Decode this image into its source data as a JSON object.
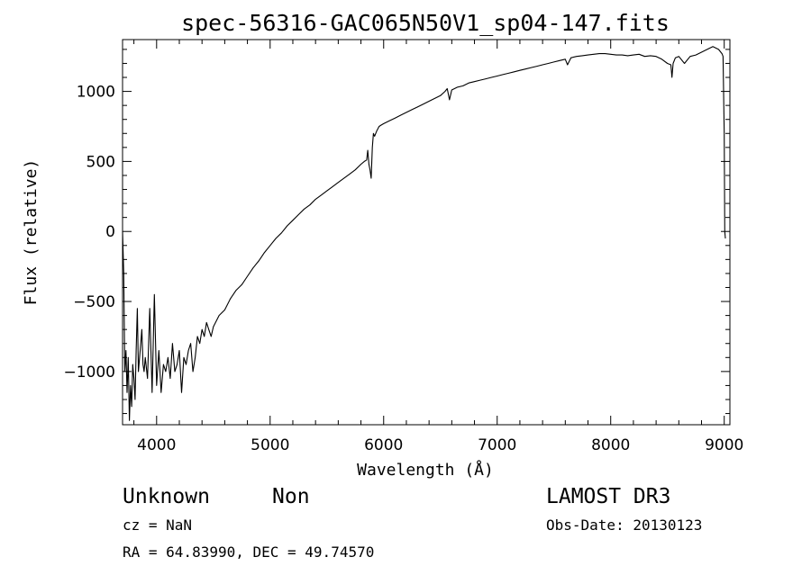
{
  "chart_data": {
    "type": "line",
    "title": "spec-56316-GAC065N50V1_sp04-147.fits",
    "xlabel": "Wavelength (Å)",
    "ylabel": "Flux (relative)",
    "xlim": [
      3700,
      9050
    ],
    "ylim": [
      -1380,
      1370
    ],
    "x_ticks": [
      4000,
      5000,
      6000,
      7000,
      8000,
      9000
    ],
    "y_ticks": [
      -1000,
      -500,
      0,
      500,
      1000
    ],
    "grid": false,
    "series": [
      {
        "x": [
          3700,
          3710,
          3720,
          3730,
          3740,
          3750,
          3760,
          3770,
          3780,
          3790,
          3800,
          3810,
          3820,
          3830,
          3840,
          3850,
          3860,
          3870,
          3880,
          3890,
          3900,
          3920,
          3940,
          3960,
          3980,
          4000,
          4020,
          4040,
          4060,
          4080,
          4100,
          4120,
          4140,
          4160,
          4180,
          4200,
          4220,
          4240,
          4260,
          4280,
          4300,
          4320,
          4340,
          4360,
          4380,
          4400,
          4420,
          4440,
          4460,
          4480,
          4500,
          4550,
          4600,
          4650,
          4700,
          4750,
          4800,
          4850,
          4900,
          4950,
          5000,
          5050,
          5100,
          5150,
          5200,
          5250,
          5300,
          5350,
          5400,
          5450,
          5500,
          5550,
          5600,
          5650,
          5700,
          5750,
          5800,
          5830,
          5850,
          5860,
          5870,
          5880,
          5890,
          5900,
          5910,
          5920,
          5940,
          5960,
          5980,
          6000,
          6050,
          6100,
          6150,
          6200,
          6250,
          6300,
          6350,
          6400,
          6450,
          6500,
          6540,
          6560,
          6580,
          6600,
          6650,
          6700,
          6750,
          6800,
          6850,
          6900,
          6950,
          7000,
          7050,
          7100,
          7150,
          7200,
          7250,
          7300,
          7350,
          7400,
          7450,
          7500,
          7550,
          7600,
          7620,
          7650,
          7700,
          7750,
          7800,
          7850,
          7900,
          7950,
          8000,
          8050,
          8100,
          8150,
          8200,
          8250,
          8300,
          8350,
          8400,
          8450,
          8500,
          8530,
          8540,
          8550,
          8570,
          8600,
          8650,
          8700,
          8750,
          8800,
          8850,
          8900,
          8950,
          8980,
          8990,
          9000,
          9005,
          9010
        ],
        "y": [
          0,
          -300,
          -1000,
          -850,
          -1150,
          -900,
          -1350,
          -1100,
          -1250,
          -950,
          -1050,
          -1200,
          -850,
          -550,
          -1000,
          -900,
          -800,
          -700,
          -950,
          -1000,
          -900,
          -1050,
          -550,
          -1150,
          -450,
          -1100,
          -850,
          -1150,
          -950,
          -1000,
          -900,
          -1050,
          -800,
          -1000,
          -950,
          -850,
          -1150,
          -900,
          -950,
          -850,
          -800,
          -1000,
          -900,
          -750,
          -800,
          -700,
          -750,
          -650,
          -700,
          -750,
          -680,
          -600,
          -560,
          -480,
          -420,
          -380,
          -320,
          -260,
          -210,
          -150,
          -100,
          -50,
          -10,
          40,
          80,
          120,
          160,
          190,
          230,
          260,
          290,
          320,
          350,
          380,
          410,
          440,
          480,
          500,
          510,
          580,
          480,
          440,
          380,
          600,
          700,
          680,
          720,
          750,
          760,
          770,
          790,
          810,
          830,
          850,
          870,
          890,
          910,
          930,
          950,
          970,
          1000,
          1020,
          940,
          1010,
          1030,
          1040,
          1060,
          1070,
          1080,
          1090,
          1100,
          1110,
          1120,
          1130,
          1140,
          1150,
          1160,
          1170,
          1180,
          1190,
          1200,
          1210,
          1220,
          1230,
          1190,
          1240,
          1250,
          1255,
          1260,
          1265,
          1270,
          1270,
          1265,
          1260,
          1260,
          1255,
          1260,
          1265,
          1250,
          1255,
          1250,
          1230,
          1200,
          1190,
          1100,
          1200,
          1240,
          1250,
          1200,
          1250,
          1260,
          1280,
          1300,
          1320,
          1300,
          1270,
          1250,
          700,
          0,
          -50
        ]
      }
    ]
  },
  "info": {
    "object_class": "Unknown",
    "subclass": "Non",
    "cz": "cz = NaN",
    "radec": "RA =  64.83990, DEC =  49.74570",
    "survey": "LAMOST DR3",
    "obs_date": "Obs-Date: 20130123"
  }
}
